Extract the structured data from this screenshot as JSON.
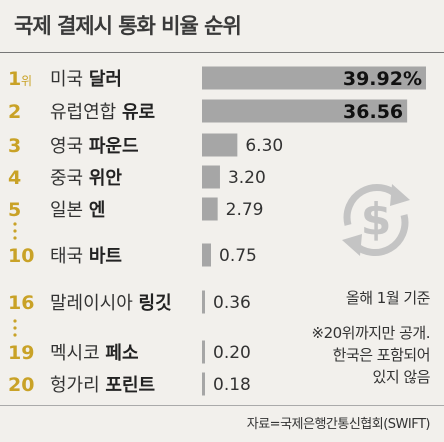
{
  "header": {
    "title": "국제 결제시 통화 비율 순위"
  },
  "chart_data": {
    "type": "bar",
    "orientation": "horizontal",
    "title": "국제 결제시 통화 비율 순위",
    "rank_suffix": "위",
    "unit_first": "%",
    "categories": [
      {
        "rank": "1",
        "country": "미국",
        "currency": "달러",
        "value": 39.92,
        "label": "39.92%"
      },
      {
        "rank": "2",
        "country": "유럽연합",
        "currency": "유로",
        "value": 36.56,
        "label": "36.56"
      },
      {
        "rank": "3",
        "country": "영국",
        "currency": "파운드",
        "value": 6.3,
        "label": "6.30"
      },
      {
        "rank": "4",
        "country": "중국",
        "currency": "위안",
        "value": 3.2,
        "label": "3.20"
      },
      {
        "rank": "5",
        "country": "일본",
        "currency": "엔",
        "value": 2.79,
        "label": "2.79"
      },
      {
        "rank": "10",
        "country": "태국",
        "currency": "바트",
        "value": 0.75,
        "label": "0.75"
      },
      {
        "rank": "16",
        "country": "말레이시아",
        "currency": "링깃",
        "value": 0.36,
        "label": "0.36"
      },
      {
        "rank": "19",
        "country": "멕시코",
        "currency": "페소",
        "value": 0.2,
        "label": "0.20"
      },
      {
        "rank": "20",
        "country": "헝가리",
        "currency": "포린트",
        "value": 0.18,
        "label": "0.18"
      }
    ],
    "colors": {
      "bar": "#a6a6a6",
      "rank": "#c9a227",
      "background": "#f2f0ec"
    }
  },
  "notes": {
    "date": "올해 1월 기준",
    "footnote_lines": [
      "※20위까지만 공개.",
      "한국은 포함되어",
      "있지 않음"
    ]
  },
  "source": "자료=국제은행간통신협회(SWIFT)",
  "icon": {
    "name": "dollar-exchange-icon"
  }
}
